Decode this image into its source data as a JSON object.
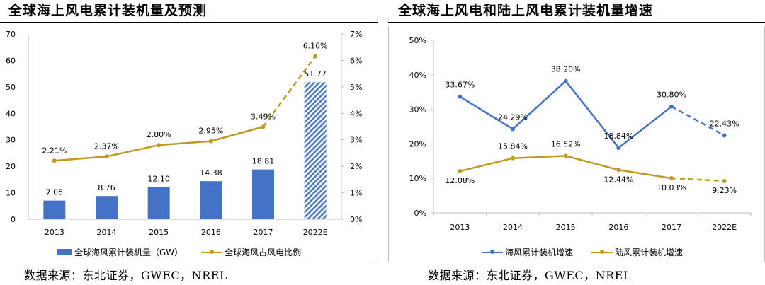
{
  "left": {
    "title": "全球海上风电累计装机量及预测",
    "source": "数据来源：东北证券，GWEC，NREL",
    "legend": {
      "bar_label": "全球海风累计装机量（GW）",
      "line_label": "全球海风占风电比例"
    }
  },
  "right": {
    "title": "全球海上风电和陆上风电累计装机量增速",
    "source": "数据来源：东北证券，GWEC，NREL",
    "legend": {
      "offshore_label": "海风累计装机增速",
      "onshore_label": "陆风累计装机增速"
    }
  },
  "colors": {
    "bar": "#4472c4",
    "line_gold": "#c09a1e",
    "line_blue": "#4472c4",
    "axis": "#bfbfbf",
    "text": "#000000"
  },
  "chart_data": [
    {
      "type": "bar",
      "title": "全球海上风电累计装机量及预测",
      "categories": [
        "2013",
        "2014",
        "2015",
        "2016",
        "2017",
        "2022E"
      ],
      "series": [
        {
          "name": "全球海风累计装机量（GW）",
          "type": "bar",
          "axis": "left",
          "values": [
            7.05,
            8.76,
            12.1,
            14.38,
            18.81,
            51.77
          ],
          "labels": [
            "7.05",
            "8.76",
            "12.10",
            "14.38",
            "18.81",
            "51.77"
          ],
          "forecast_from_index": 5
        },
        {
          "name": "全球海风占风电比例",
          "type": "line",
          "axis": "right",
          "values": [
            2.21,
            2.37,
            2.8,
            2.95,
            3.49,
            6.16
          ],
          "labels": [
            "2.21%",
            "2.37%",
            "2.80%",
            "2.95%",
            "3.49%",
            "6.16%"
          ],
          "forecast_from_index": 4
        }
      ],
      "y_left": {
        "min": 0,
        "max": 70,
        "step": 10,
        "ticks": [
          "0",
          "10",
          "20",
          "30",
          "40",
          "50",
          "60",
          "70"
        ]
      },
      "y_right": {
        "min": 0,
        "max": 7,
        "step": 1,
        "ticks": [
          "0%",
          "1%",
          "2%",
          "3%",
          "4%",
          "5%",
          "6%",
          "7%"
        ]
      },
      "grid": false,
      "legend_position": "bottom"
    },
    {
      "type": "line",
      "title": "全球海上风电和陆上风电累计装机量增速",
      "categories": [
        "2013",
        "2014",
        "2015",
        "2016",
        "2017",
        "2022E"
      ],
      "series": [
        {
          "name": "海风累计装机增速",
          "values": [
            33.67,
            24.29,
            38.2,
            18.84,
            30.8,
            22.43
          ],
          "labels": [
            "33.67%",
            "24.29%",
            "38.20%",
            "18.84%",
            "30.80%",
            "22.43%"
          ],
          "forecast_from_index": 4
        },
        {
          "name": "陆风累计装机增速",
          "values": [
            12.08,
            15.84,
            16.52,
            12.44,
            10.03,
            9.23
          ],
          "labels": [
            "12.08%",
            "15.84%",
            "16.52%",
            "12.44%",
            "10.03%",
            "9.23%"
          ],
          "forecast_from_index": 4
        }
      ],
      "y": {
        "min": 0,
        "max": 50,
        "step": 10,
        "ticks": [
          "0%",
          "10%",
          "20%",
          "30%",
          "40%",
          "50%"
        ]
      },
      "grid": false,
      "legend_position": "bottom"
    }
  ]
}
